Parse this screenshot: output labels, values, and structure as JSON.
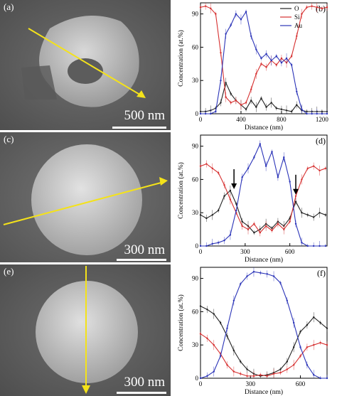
{
  "sem_panels": [
    {
      "label": "(a)",
      "scale": "500 nm"
    },
    {
      "label": "(c)",
      "scale": "300 nm"
    },
    {
      "label": "(e)",
      "scale": "300 nm"
    }
  ],
  "colors": {
    "O": "#222222",
    "Si": "#d62f2f",
    "Au": "#2b34b8",
    "arrow": "#f4e21a"
  },
  "chart_data": [
    {
      "panel": "(b)",
      "type": "line",
      "xlabel": "Distance (nm)",
      "ylabel": "Concentration (at.%)",
      "xlim": [
        0,
        1250
      ],
      "ylim": [
        0,
        100
      ],
      "xticks": [
        0,
        400,
        800,
        1200
      ],
      "yticks": [
        0,
        30,
        60,
        90
      ],
      "legend": [
        "O",
        "Si",
        "Au"
      ],
      "legend_position": "top-right",
      "series": [
        {
          "name": "O",
          "x": [
            0,
            50,
            100,
            150,
            200,
            250,
            300,
            350,
            400,
            450,
            500,
            550,
            600,
            650,
            700,
            750,
            800,
            850,
            900,
            950,
            1000,
            1050,
            1100,
            1150,
            1200,
            1250
          ],
          "y": [
            2,
            2,
            3,
            5,
            10,
            28,
            18,
            12,
            8,
            4,
            12,
            6,
            14,
            6,
            10,
            5,
            4,
            3,
            2,
            8,
            3,
            2,
            2,
            2,
            2,
            2
          ]
        },
        {
          "name": "Si",
          "x": [
            0,
            50,
            100,
            150,
            200,
            250,
            300,
            350,
            400,
            450,
            500,
            550,
            600,
            650,
            700,
            750,
            800,
            850,
            900,
            950,
            1000,
            1050,
            1100,
            1150,
            1200,
            1250
          ],
          "y": [
            96,
            97,
            95,
            90,
            55,
            15,
            10,
            12,
            8,
            10,
            22,
            36,
            45,
            42,
            48,
            44,
            50,
            46,
            52,
            70,
            90,
            96,
            97,
            96,
            95,
            96
          ]
        },
        {
          "name": "Au",
          "x": [
            0,
            50,
            100,
            150,
            200,
            250,
            300,
            350,
            400,
            450,
            500,
            550,
            600,
            650,
            700,
            750,
            800,
            850,
            900,
            950,
            1000,
            1050,
            1100,
            1150,
            1200,
            1250
          ],
          "y": [
            0,
            0,
            0,
            2,
            30,
            72,
            80,
            90,
            85,
            92,
            70,
            58,
            50,
            54,
            48,
            52,
            46,
            50,
            44,
            20,
            4,
            0,
            0,
            0,
            0,
            0
          ]
        }
      ]
    },
    {
      "panel": "(d)",
      "type": "line",
      "xlabel": "Distance (nm)",
      "ylabel": "Concentration (at.%)",
      "xlim": [
        0,
        850
      ],
      "ylim": [
        0,
        100
      ],
      "xticks": [
        0,
        300,
        600
      ],
      "yticks": [
        0,
        30,
        60,
        90
      ],
      "series": [
        {
          "name": "O",
          "x": [
            0,
            40,
            80,
            120,
            160,
            200,
            240,
            280,
            320,
            360,
            400,
            440,
            480,
            520,
            560,
            600,
            640,
            680,
            720,
            760,
            800,
            840
          ],
          "y": [
            28,
            25,
            28,
            32,
            45,
            50,
            38,
            22,
            18,
            12,
            15,
            20,
            16,
            22,
            18,
            25,
            40,
            30,
            28,
            26,
            30,
            28
          ]
        },
        {
          "name": "Si",
          "x": [
            0,
            40,
            80,
            120,
            160,
            200,
            240,
            280,
            320,
            360,
            400,
            440,
            480,
            520,
            560,
            600,
            640,
            680,
            720,
            760,
            800,
            840
          ],
          "y": [
            72,
            74,
            70,
            66,
            55,
            42,
            30,
            18,
            15,
            20,
            12,
            18,
            14,
            20,
            15,
            22,
            45,
            60,
            70,
            72,
            68,
            70
          ]
        },
        {
          "name": "Au",
          "x": [
            0,
            40,
            80,
            120,
            160,
            200,
            240,
            280,
            320,
            360,
            400,
            440,
            480,
            520,
            560,
            600,
            640,
            680,
            720,
            760,
            800,
            840
          ],
          "y": [
            0,
            0,
            2,
            3,
            5,
            10,
            32,
            62,
            70,
            80,
            92,
            72,
            85,
            62,
            80,
            58,
            20,
            3,
            0,
            0,
            0,
            0
          ]
        }
      ],
      "annotations": [
        {
          "type": "arrow",
          "x": 225,
          "y": 50
        },
        {
          "type": "arrow",
          "x": 640,
          "y": 45
        }
      ]
    },
    {
      "panel": "(f)",
      "type": "line",
      "xlabel": "Distance (nm)",
      "ylabel": "Concentration (at.%)",
      "xlim": [
        0,
        760
      ],
      "ylim": [
        0,
        100
      ],
      "xticks": [
        0,
        300,
        600
      ],
      "yticks": [
        0,
        30,
        60,
        90
      ],
      "series": [
        {
          "name": "O",
          "x": [
            0,
            40,
            80,
            120,
            160,
            200,
            240,
            280,
            320,
            360,
            400,
            440,
            480,
            520,
            560,
            600,
            640,
            680,
            720,
            760
          ],
          "y": [
            65,
            62,
            58,
            50,
            38,
            25,
            15,
            8,
            4,
            2,
            3,
            5,
            8,
            15,
            28,
            42,
            48,
            55,
            50,
            45
          ]
        },
        {
          "name": "Si",
          "x": [
            0,
            40,
            80,
            120,
            160,
            200,
            240,
            280,
            320,
            360,
            400,
            440,
            480,
            520,
            560,
            600,
            640,
            680,
            720,
            760
          ],
          "y": [
            40,
            36,
            30,
            22,
            12,
            6,
            4,
            2,
            2,
            3,
            2,
            4,
            5,
            8,
            12,
            20,
            28,
            30,
            32,
            30
          ]
        },
        {
          "name": "Au",
          "x": [
            0,
            40,
            80,
            120,
            160,
            200,
            240,
            280,
            320,
            360,
            400,
            440,
            480,
            520,
            560,
            600,
            640,
            680,
            720,
            760
          ],
          "y": [
            0,
            2,
            6,
            20,
            45,
            70,
            85,
            92,
            96,
            95,
            94,
            92,
            86,
            70,
            50,
            28,
            12,
            3,
            0,
            0
          ]
        }
      ]
    }
  ]
}
